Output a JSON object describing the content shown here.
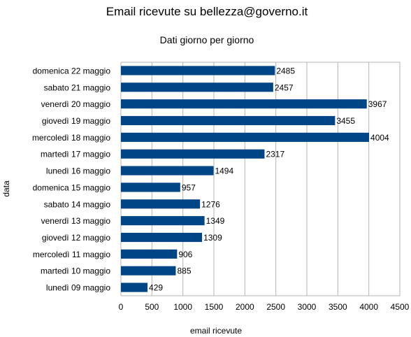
{
  "chart_data": {
    "type": "bar",
    "orientation": "horizontal",
    "title": "Email ricevute su bellezza@governo.it",
    "subtitle": "Dati giorno per giorno",
    "xlabel": "email ricevute",
    "ylabel": "data",
    "categories": [
      "domenica 22 maggio",
      "sabato 21 maggio",
      "venerdì 20 maggio",
      "giovedì 19 maggio",
      "mercoledì 18 maggio",
      "martedì 17 maggio",
      "lunedì 16 maggio",
      "domenica 15 maggio",
      "sabato 14 maggio",
      "venerdì 13 maggio",
      "giovedì 12 maggio",
      "mercoledì 11 maggio",
      "martedì 10 maggio",
      "lunedì 09 maggio"
    ],
    "values": [
      2485,
      2457,
      3967,
      3455,
      4004,
      2317,
      1494,
      957,
      1276,
      1349,
      1309,
      906,
      885,
      429
    ],
    "xlim": [
      0,
      4500
    ],
    "xticks": [
      0,
      500,
      1000,
      1500,
      2000,
      2500,
      3000,
      3500,
      4000,
      4500
    ],
    "grid": true,
    "legend": "none",
    "bar_color": "#004586"
  }
}
